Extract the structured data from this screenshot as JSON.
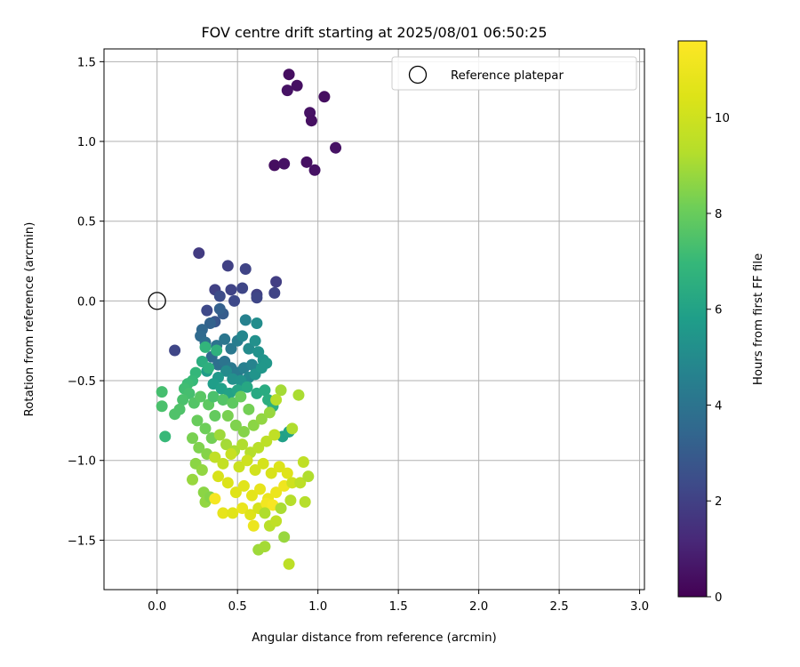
{
  "chart_data": {
    "type": "scatter",
    "title": "FOV centre drift starting at 2025/08/01 06:50:25",
    "xlabel": "Angular distance from reference (arcmin)",
    "ylabel": "Rotation from reference (arcmin)",
    "xlim": [
      -0.33,
      3.03
    ],
    "ylim": [
      -1.81,
      1.58
    ],
    "xticks": [
      0.0,
      0.5,
      1.0,
      1.5,
      2.0,
      2.5,
      3.0
    ],
    "xtick_labels": [
      "0.0",
      "0.5",
      "1.0",
      "1.5",
      "2.0",
      "2.5",
      "3.0"
    ],
    "yticks": [
      1.5,
      1.0,
      0.5,
      0.0,
      -0.5,
      -1.0,
      -1.5
    ],
    "ytick_labels": [
      "1.5",
      "1.0",
      "0.5",
      "0.0",
      "−0.5",
      "−1.0",
      "−1.5"
    ],
    "grid": true,
    "legend": {
      "position": "top-right",
      "entries": [
        "Reference platepar"
      ]
    },
    "reference_point": {
      "x": 0.0,
      "y": 0.0
    },
    "colorbar": {
      "label": "Hours from first FF file",
      "colormap": "viridis",
      "range": [
        0,
        11.6
      ],
      "ticks": [
        0,
        2,
        4,
        6,
        8,
        10
      ],
      "tick_labels": [
        "0",
        "2",
        "4",
        "6",
        "8",
        "10"
      ]
    },
    "points": [
      [
        0.82,
        1.42,
        0.4
      ],
      [
        0.81,
        1.32,
        0.5
      ],
      [
        0.87,
        1.35,
        0.45
      ],
      [
        1.04,
        1.28,
        0.4
      ],
      [
        0.95,
        1.18,
        0.5
      ],
      [
        0.96,
        1.13,
        0.45
      ],
      [
        1.11,
        0.96,
        0.5
      ],
      [
        0.73,
        0.85,
        0.4
      ],
      [
        0.79,
        0.86,
        0.5
      ],
      [
        0.93,
        0.87,
        0.45
      ],
      [
        0.98,
        0.82,
        0.5
      ],
      [
        0.26,
        0.3,
        1.8
      ],
      [
        0.44,
        0.22,
        2.0
      ],
      [
        0.55,
        0.2,
        2.1
      ],
      [
        0.74,
        0.12,
        1.9
      ],
      [
        0.36,
        0.07,
        2.0
      ],
      [
        0.46,
        0.07,
        2.1
      ],
      [
        0.53,
        0.08,
        2.2
      ],
      [
        0.62,
        0.04,
        2.0
      ],
      [
        0.73,
        0.05,
        2.1
      ],
      [
        0.62,
        0.02,
        2.2
      ],
      [
        0.48,
        0.0,
        2.3
      ],
      [
        0.39,
        0.03,
        2.4
      ],
      [
        0.11,
        -0.31,
        2.2
      ],
      [
        0.31,
        -0.06,
        2.3
      ],
      [
        0.36,
        -0.13,
        2.8
      ],
      [
        0.41,
        -0.08,
        3.0
      ],
      [
        0.39,
        -0.05,
        3.2
      ],
      [
        0.33,
        -0.14,
        3.3
      ],
      [
        0.28,
        -0.18,
        3.5
      ],
      [
        0.27,
        -0.22,
        3.6
      ],
      [
        0.3,
        -0.26,
        3.8
      ],
      [
        0.37,
        -0.28,
        4.0
      ],
      [
        0.42,
        -0.24,
        4.1
      ],
      [
        0.46,
        -0.3,
        4.2
      ],
      [
        0.5,
        -0.25,
        4.4
      ],
      [
        0.55,
        -0.12,
        4.6
      ],
      [
        0.53,
        -0.22,
        4.8
      ],
      [
        0.57,
        -0.3,
        5.0
      ],
      [
        0.62,
        -0.14,
        5.1
      ],
      [
        0.61,
        -0.25,
        5.2
      ],
      [
        0.63,
        -0.32,
        5.3
      ],
      [
        0.66,
        -0.37,
        5.4
      ],
      [
        0.68,
        -0.39,
        5.5
      ],
      [
        0.34,
        -0.35,
        3.6
      ],
      [
        0.38,
        -0.4,
        3.8
      ],
      [
        0.42,
        -0.38,
        4.0
      ],
      [
        0.46,
        -0.42,
        4.2
      ],
      [
        0.5,
        -0.45,
        4.3
      ],
      [
        0.54,
        -0.42,
        4.5
      ],
      [
        0.59,
        -0.4,
        4.7
      ],
      [
        0.57,
        -0.48,
        4.9
      ],
      [
        0.43,
        -0.44,
        5.0
      ],
      [
        0.47,
        -0.49,
        5.2
      ],
      [
        0.52,
        -0.5,
        5.3
      ],
      [
        0.61,
        -0.46,
        5.4
      ],
      [
        0.65,
        -0.42,
        5.5
      ],
      [
        0.38,
        -0.48,
        5.6
      ],
      [
        0.31,
        -0.44,
        5.7
      ],
      [
        0.35,
        -0.52,
        5.8
      ],
      [
        0.4,
        -0.55,
        5.9
      ],
      [
        0.45,
        -0.58,
        6.0
      ],
      [
        0.5,
        -0.56,
        6.1
      ],
      [
        0.56,
        -0.54,
        6.2
      ],
      [
        0.62,
        -0.58,
        6.3
      ],
      [
        0.67,
        -0.56,
        6.4
      ],
      [
        0.69,
        -0.62,
        6.5
      ],
      [
        0.72,
        -0.66,
        6.6
      ],
      [
        0.78,
        -0.85,
        5.9
      ],
      [
        0.82,
        -0.82,
        6.0
      ],
      [
        0.28,
        -0.38,
        6.5
      ],
      [
        0.32,
        -0.42,
        6.6
      ],
      [
        0.37,
        -0.31,
        6.7
      ],
      [
        0.3,
        -0.29,
        6.8
      ],
      [
        0.24,
        -0.45,
        6.9
      ],
      [
        0.22,
        -0.5,
        7.0
      ],
      [
        0.19,
        -0.52,
        7.1
      ],
      [
        0.17,
        -0.55,
        7.2
      ],
      [
        0.2,
        -0.58,
        7.3
      ],
      [
        0.16,
        -0.62,
        7.4
      ],
      [
        0.14,
        -0.68,
        7.5
      ],
      [
        0.03,
        -0.57,
        7.3
      ],
      [
        0.03,
        -0.66,
        7.4
      ],
      [
        0.11,
        -0.71,
        7.5
      ],
      [
        0.05,
        -0.85,
        7.0
      ],
      [
        0.23,
        -0.64,
        7.6
      ],
      [
        0.27,
        -0.6,
        7.7
      ],
      [
        0.32,
        -0.65,
        7.8
      ],
      [
        0.36,
        -0.72,
        7.9
      ],
      [
        0.25,
        -0.75,
        8.0
      ],
      [
        0.3,
        -0.8,
        8.1
      ],
      [
        0.34,
        -0.86,
        8.2
      ],
      [
        0.22,
        -0.86,
        8.3
      ],
      [
        0.26,
        -0.92,
        8.4
      ],
      [
        0.31,
        -0.96,
        8.5
      ],
      [
        0.24,
        -1.02,
        8.6
      ],
      [
        0.28,
        -1.06,
        8.7
      ],
      [
        0.22,
        -1.12,
        8.8
      ],
      [
        0.29,
        -1.2,
        8.6
      ],
      [
        0.3,
        -1.26,
        8.7
      ],
      [
        0.33,
        -1.23,
        8.5
      ],
      [
        0.35,
        -0.6,
        7.4
      ],
      [
        0.41,
        -0.62,
        7.6
      ],
      [
        0.47,
        -0.64,
        7.8
      ],
      [
        0.52,
        -0.6,
        8.0
      ],
      [
        0.57,
        -0.68,
        8.2
      ],
      [
        0.44,
        -0.72,
        8.3
      ],
      [
        0.49,
        -0.78,
        8.4
      ],
      [
        0.54,
        -0.82,
        8.5
      ],
      [
        0.6,
        -0.78,
        8.6
      ],
      [
        0.65,
        -0.74,
        8.7
      ],
      [
        0.7,
        -0.7,
        8.8
      ],
      [
        0.39,
        -0.84,
        8.9
      ],
      [
        0.43,
        -0.9,
        9.0
      ],
      [
        0.48,
        -0.94,
        9.1
      ],
      [
        0.53,
        -0.9,
        9.2
      ],
      [
        0.58,
        -0.95,
        9.3
      ],
      [
        0.63,
        -0.92,
        9.4
      ],
      [
        0.68,
        -0.88,
        9.5
      ],
      [
        0.73,
        -0.84,
        9.6
      ],
      [
        0.77,
        -0.56,
        9.0
      ],
      [
        0.84,
        -0.8,
        9.2
      ],
      [
        0.88,
        -0.59,
        9.1
      ],
      [
        0.74,
        -0.62,
        9.3
      ],
      [
        0.36,
        -0.98,
        9.6
      ],
      [
        0.41,
        -1.02,
        9.7
      ],
      [
        0.46,
        -0.96,
        9.8
      ],
      [
        0.51,
        -1.04,
        9.9
      ],
      [
        0.56,
        -1.0,
        10.0
      ],
      [
        0.61,
        -1.06,
        10.1
      ],
      [
        0.66,
        -1.02,
        10.2
      ],
      [
        0.71,
        -1.08,
        10.3
      ],
      [
        0.76,
        -1.04,
        10.4
      ],
      [
        0.81,
        -1.08,
        10.5
      ],
      [
        0.38,
        -1.1,
        10.3
      ],
      [
        0.44,
        -1.14,
        10.4
      ],
      [
        0.49,
        -1.2,
        10.5
      ],
      [
        0.54,
        -1.16,
        10.6
      ],
      [
        0.59,
        -1.22,
        10.7
      ],
      [
        0.64,
        -1.18,
        10.8
      ],
      [
        0.69,
        -1.24,
        10.9
      ],
      [
        0.74,
        -1.2,
        11.0
      ],
      [
        0.79,
        -1.16,
        11.1
      ],
      [
        0.84,
        -1.14,
        10.0
      ],
      [
        0.91,
        -1.01,
        9.6
      ],
      [
        0.89,
        -1.14,
        9.5
      ],
      [
        0.83,
        -1.25,
        9.3
      ],
      [
        0.41,
        -1.33,
        10.8
      ],
      [
        0.47,
        -1.33,
        10.6
      ],
      [
        0.53,
        -1.3,
        10.9
      ],
      [
        0.58,
        -1.34,
        10.5
      ],
      [
        0.63,
        -1.3,
        10.2
      ],
      [
        0.6,
        -1.41,
        11.0
      ],
      [
        0.68,
        -1.27,
        11.2
      ],
      [
        0.72,
        -1.28,
        11.4
      ],
      [
        0.36,
        -1.24,
        11.3
      ],
      [
        0.67,
        -1.33,
        9.2
      ],
      [
        0.7,
        -1.41,
        9.4
      ],
      [
        0.77,
        -1.3,
        9.1
      ],
      [
        0.74,
        -1.38,
        9.6
      ],
      [
        0.79,
        -1.48,
        8.8
      ],
      [
        0.63,
        -1.56,
        8.9
      ],
      [
        0.67,
        -1.54,
        9.0
      ],
      [
        0.82,
        -1.65,
        9.5
      ],
      [
        0.92,
        -1.26,
        9.3
      ],
      [
        0.94,
        -1.1,
        9.2
      ]
    ]
  }
}
